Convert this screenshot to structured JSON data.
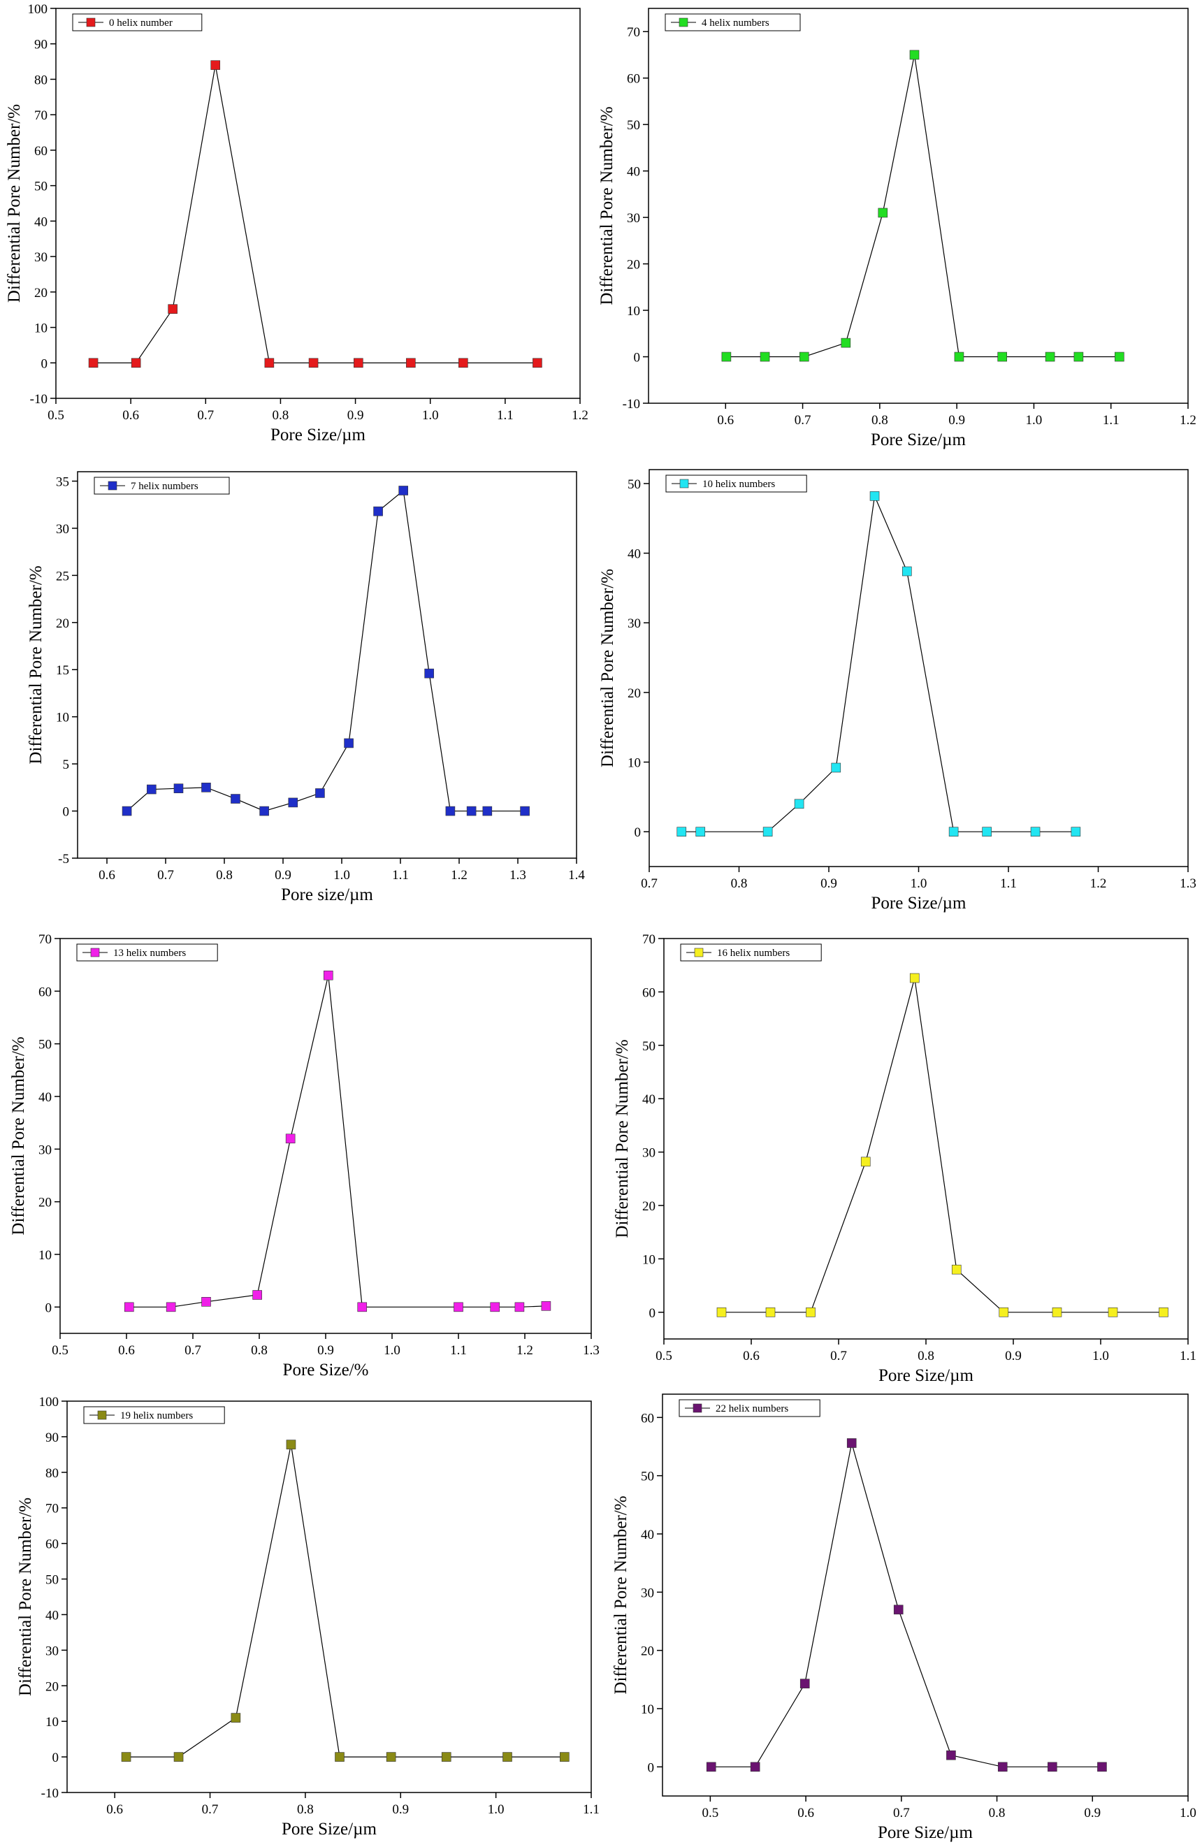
{
  "chart_data": [
    {
      "type": "line",
      "xlabel": "Pore Size/µm",
      "ylabel": "Differential Pore Number/%",
      "xlim": [
        0.5,
        1.2
      ],
      "ylim": [
        -10,
        100
      ],
      "xticks": [
        "0.5",
        "0.6",
        "0.7",
        "0.8",
        "0.9",
        "1.0",
        "1.1",
        "1.2"
      ],
      "yticks": [
        "-10",
        "0",
        "10",
        "20",
        "30",
        "40",
        "50",
        "60",
        "70",
        "80",
        "90",
        "100"
      ],
      "legend_position": "top-left",
      "series": [
        {
          "name": "0 helix number",
          "color": "#e41a1c",
          "x": [
            0.55,
            0.607,
            0.656,
            0.713,
            0.785,
            0.844,
            0.904,
            0.974,
            1.044,
            1.143
          ],
          "y": [
            0,
            0,
            15.2,
            84,
            0,
            0,
            0,
            0,
            0,
            0
          ]
        }
      ]
    },
    {
      "type": "line",
      "xlabel": "Pore Size/µm",
      "ylabel": "Differential Pore Number/%",
      "xlim": [
        0.5,
        1.2
      ],
      "ylim": [
        -10,
        75
      ],
      "xticks": [
        "0.6",
        "0.7",
        "0.8",
        "0.9",
        "1.0",
        "1.1",
        "1.2"
      ],
      "yticks": [
        "-10",
        "0",
        "10",
        "20",
        "30",
        "40",
        "50",
        "60",
        "70"
      ],
      "legend_position": "top-left",
      "series": [
        {
          "name": "4 helix numbers",
          "color": "#22dd22",
          "x": [
            0.601,
            0.651,
            0.702,
            0.756,
            0.804,
            0.845,
            0.903,
            0.959,
            1.021,
            1.058,
            1.111
          ],
          "y": [
            0,
            0,
            0,
            3,
            31,
            65,
            0,
            0,
            0,
            0,
            0
          ]
        }
      ]
    },
    {
      "type": "line",
      "xlabel": "Pore size/µm",
      "ylabel": "Differential Pore Number/%",
      "xlim": [
        0.55,
        1.4
      ],
      "ylim": [
        -5,
        36
      ],
      "xticks": [
        "0.6",
        "0.7",
        "0.8",
        "0.9",
        "1.0",
        "1.1",
        "1.2",
        "1.3",
        "1.4"
      ],
      "yticks": [
        "-5",
        "0",
        "5",
        "10",
        "15",
        "20",
        "25",
        "30",
        "35"
      ],
      "legend_position": "top-left",
      "series": [
        {
          "name": "7 helix numbers",
          "color": "#1f2fc8",
          "x": [
            0.634,
            0.676,
            0.722,
            0.769,
            0.819,
            0.868,
            0.917,
            0.963,
            1.012,
            1.062,
            1.105,
            1.149,
            1.185,
            1.221,
            1.248,
            1.312
          ],
          "y": [
            0,
            2.3,
            2.4,
            2.5,
            1.3,
            0,
            0.9,
            1.9,
            7.2,
            31.8,
            34,
            14.6,
            0,
            0,
            0,
            0
          ]
        }
      ]
    },
    {
      "type": "line",
      "xlabel": "Pore Size/µm",
      "ylabel": "Differential Pore Number/%",
      "xlim": [
        0.7,
        1.3
      ],
      "ylim": [
        -5,
        52
      ],
      "xticks": [
        "0.7",
        "0.8",
        "0.9",
        "1.0",
        "1.1",
        "1.2",
        "1.3"
      ],
      "yticks": [
        "0",
        "10",
        "20",
        "30",
        "40",
        "50"
      ],
      "legend_position": "top-left",
      "series": [
        {
          "name": "10 helix numbers",
          "color": "#22e5f2",
          "x": [
            0.736,
            0.757,
            0.832,
            0.867,
            0.908,
            0.951,
            0.987,
            1.039,
            1.076,
            1.13,
            1.175
          ],
          "y": [
            0,
            0,
            0,
            4,
            9.2,
            48.2,
            37.4,
            0,
            0,
            0,
            0
          ]
        }
      ]
    },
    {
      "type": "line",
      "xlabel": "Pore Size/%",
      "ylabel": "Differential Pore Number/%",
      "xlim": [
        0.5,
        1.3
      ],
      "ylim": [
        -5,
        70
      ],
      "xticks": [
        "0.5",
        "0.6",
        "0.7",
        "0.8",
        "0.9",
        "1.0",
        "1.1",
        "1.2",
        "1.3"
      ],
      "yticks": [
        "0",
        "10",
        "20",
        "30",
        "40",
        "50",
        "60",
        "70"
      ],
      "legend_position": "top-left",
      "series": [
        {
          "name": "13 helix numbers",
          "color": "#f020e8",
          "x": [
            0.604,
            0.667,
            0.72,
            0.797,
            0.847,
            0.904,
            0.955,
            1.1,
            1.155,
            1.192,
            1.232
          ],
          "y": [
            0,
            0,
            1,
            2.3,
            32,
            63,
            0,
            0,
            0,
            0,
            0.2
          ]
        }
      ]
    },
    {
      "type": "line",
      "xlabel": "Pore Size/µm",
      "ylabel": "Differential Pore Number/%",
      "xlim": [
        0.5,
        1.1
      ],
      "ylim": [
        -5,
        70
      ],
      "xticks": [
        "0.5",
        "0.6",
        "0.7",
        "0.8",
        "0.9",
        "1.0",
        "1.1"
      ],
      "yticks": [
        "0",
        "10",
        "20",
        "30",
        "40",
        "50",
        "60",
        "70"
      ],
      "legend_position": "top-left",
      "series": [
        {
          "name": "16 helix numbers",
          "color": "#f5ef1f",
          "x": [
            0.566,
            0.622,
            0.668,
            0.731,
            0.787,
            0.835,
            0.889,
            0.95,
            1.014,
            1.072
          ],
          "y": [
            0,
            0,
            0,
            28.2,
            62.6,
            8,
            0,
            0,
            0,
            0
          ]
        }
      ]
    },
    {
      "type": "line",
      "xlabel": "Pore Size/µm",
      "ylabel": "Differential Pore Number/%",
      "xlim": [
        0.55,
        1.1
      ],
      "ylim": [
        -10,
        100
      ],
      "xticks": [
        "0.6",
        "0.7",
        "0.8",
        "0.9",
        "1.0",
        "1.1"
      ],
      "yticks": [
        "-10",
        "0",
        "10",
        "20",
        "30",
        "40",
        "50",
        "60",
        "70",
        "80",
        "90",
        "100"
      ],
      "legend_position": "top-left",
      "series": [
        {
          "name": "19 helix numbers",
          "color": "#8a8a16",
          "x": [
            0.612,
            0.667,
            0.727,
            0.785,
            0.836,
            0.89,
            0.948,
            1.012,
            1.072
          ],
          "y": [
            0,
            0,
            11,
            87.8,
            0,
            0,
            0,
            0,
            0
          ]
        }
      ]
    },
    {
      "type": "line",
      "xlabel": "Pore Size/µm",
      "ylabel": "Differential Pore Number/%",
      "xlim": [
        0.45,
        1.0
      ],
      "ylim": [
        -5,
        64
      ],
      "xticks": [
        "0.5",
        "0.6",
        "0.7",
        "0.8",
        "0.9",
        "1.0"
      ],
      "yticks": [
        "0",
        "10",
        "20",
        "30",
        "40",
        "50",
        "60"
      ],
      "legend_position": "top-left",
      "series": [
        {
          "name": "22 helix numbers",
          "color": "#6a1470",
          "x": [
            0.501,
            0.547,
            0.599,
            0.648,
            0.697,
            0.752,
            0.806,
            0.858,
            0.91
          ],
          "y": [
            0,
            0,
            14.3,
            55.6,
            27,
            2,
            0,
            0,
            0
          ]
        }
      ]
    }
  ]
}
